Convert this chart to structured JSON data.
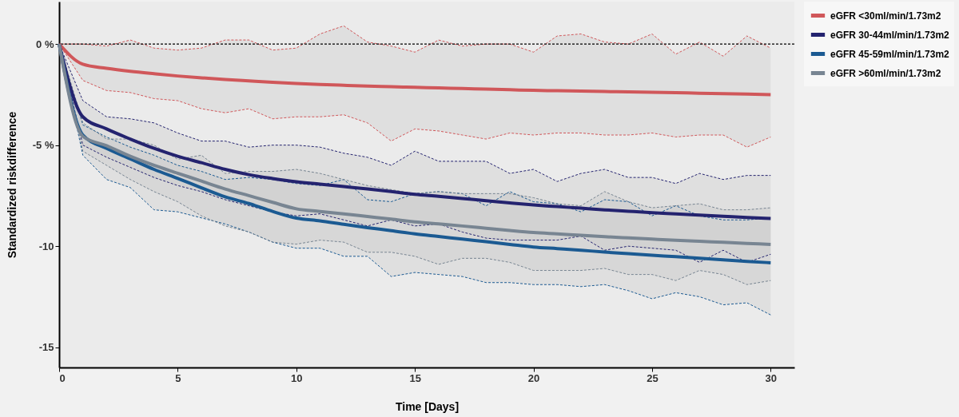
{
  "chart_data": {
    "type": "line",
    "xlabel": "Time [Days]",
    "ylabel": "Standardized riskdifference",
    "x": [
      0,
      1,
      2,
      3,
      4,
      5,
      6,
      7,
      8,
      9,
      10,
      11,
      12,
      13,
      14,
      15,
      16,
      17,
      18,
      19,
      20,
      21,
      22,
      23,
      24,
      25,
      26,
      27,
      28,
      29,
      30
    ],
    "xlim": [
      0,
      31
    ],
    "xticks": [
      0,
      5,
      10,
      15,
      20,
      25,
      30
    ],
    "ylim": [
      -16,
      2.1
    ],
    "yticks": [
      {
        "value": 0,
        "label": "0 %"
      },
      {
        "value": -5,
        "label": "-5 %"
      },
      -10,
      -15
    ],
    "legend": "right",
    "line_style": "solid",
    "ref_lines": [
      {
        "axis": "y",
        "value": 0,
        "color": "#000000",
        "line_style": "dashed"
      }
    ],
    "series": [
      {
        "name": "eGFR <30ml/min/1.73m2",
        "color": "#d0575a",
        "values": [
          0,
          -1.0,
          -1.2,
          -1.35,
          -1.47,
          -1.58,
          -1.67,
          -1.75,
          -1.82,
          -1.89,
          -1.95,
          -2.0,
          -2.04,
          -2.08,
          -2.11,
          -2.14,
          -2.17,
          -2.2,
          -2.23,
          -2.26,
          -2.29,
          -2.31,
          -2.33,
          -2.35,
          -2.37,
          -2.39,
          -2.41,
          -2.43,
          -2.45,
          -2.47,
          -2.5
        ],
        "lower": [
          0,
          -1.8,
          -2.3,
          -2.4,
          -2.7,
          -2.8,
          -3.2,
          -3.4,
          -3.2,
          -3.7,
          -3.6,
          -3.6,
          -3.5,
          -3.9,
          -4.8,
          -4.2,
          -4.3,
          -4.5,
          -4.7,
          -4.4,
          -4.5,
          -4.4,
          -4.4,
          -4.5,
          -4.5,
          -4.4,
          -4.6,
          -4.5,
          -4.5,
          -5.1,
          -4.6
        ],
        "upper": [
          0,
          0,
          -0.1,
          0.2,
          -0.2,
          -0.3,
          -0.2,
          0.2,
          0.2,
          -0.3,
          -0.2,
          0.5,
          0.9,
          0.1,
          -0.1,
          -0.4,
          0.2,
          -0.1,
          0,
          0,
          -0.4,
          0.4,
          0.5,
          0.1,
          0,
          0.5,
          -0.5,
          0.1,
          -0.6,
          0.4,
          -0.2
        ]
      },
      {
        "name": "eGFR 30-44ml/min/1.73m2",
        "color": "#24236f",
        "values": [
          0,
          -3.6,
          -4.2,
          -4.7,
          -5.16,
          -5.55,
          -5.87,
          -6.2,
          -6.46,
          -6.65,
          -6.81,
          -6.93,
          -7.05,
          -7.17,
          -7.3,
          -7.43,
          -7.53,
          -7.64,
          -7.75,
          -7.86,
          -7.96,
          -8.04,
          -8.12,
          -8.2,
          -8.27,
          -8.34,
          -8.4,
          -8.46,
          -8.52,
          -8.58,
          -8.63
        ],
        "lower": [
          0,
          -5.0,
          -5.6,
          -6.1,
          -6.6,
          -7.0,
          -7.3,
          -7.7,
          -8.0,
          -8.3,
          -8.5,
          -8.4,
          -8.7,
          -9.0,
          -8.7,
          -9.0,
          -8.9,
          -9.3,
          -9.6,
          -9.7,
          -9.7,
          -9.7,
          -9.5,
          -10.2,
          -10.0,
          -10.1,
          -10.2,
          -10.8,
          -10.2,
          -10.8,
          -10.4
        ],
        "upper": [
          0,
          -2.8,
          -3.6,
          -3.7,
          -3.9,
          -4.4,
          -4.8,
          -4.8,
          -5.1,
          -5.0,
          -5.0,
          -5.1,
          -5.4,
          -5.6,
          -6.0,
          -5.3,
          -5.8,
          -5.8,
          -5.8,
          -6.4,
          -6.2,
          -6.8,
          -6.4,
          -6.2,
          -6.6,
          -6.6,
          -6.9,
          -6.4,
          -6.7,
          -6.5,
          -6.5
        ]
      },
      {
        "name": "eGFR 45-59ml/min/1.73m2",
        "color": "#1b5a92",
        "values": [
          0,
          -4.5,
          -5.16,
          -5.68,
          -6.2,
          -6.65,
          -7.11,
          -7.56,
          -7.89,
          -8.28,
          -8.61,
          -8.75,
          -8.92,
          -9.08,
          -9.23,
          -9.39,
          -9.52,
          -9.65,
          -9.78,
          -9.91,
          -10.04,
          -10.12,
          -10.2,
          -10.29,
          -10.37,
          -10.45,
          -10.52,
          -10.6,
          -10.67,
          -10.75,
          -10.82
        ],
        "lower": [
          0,
          -5.5,
          -6.7,
          -7.1,
          -8.2,
          -8.3,
          -8.6,
          -8.9,
          -9.3,
          -9.8,
          -10.1,
          -10.1,
          -10.5,
          -10.5,
          -11.5,
          -11.3,
          -11.4,
          -11.5,
          -11.8,
          -11.8,
          -11.9,
          -11.9,
          -12.0,
          -11.9,
          -12.2,
          -12.6,
          -12.3,
          -12.5,
          -12.9,
          -12.8,
          -13.4
        ],
        "upper": [
          0,
          -4.0,
          -4.6,
          -5.1,
          -5.5,
          -6.0,
          -6.3,
          -6.7,
          -6.6,
          -6.7,
          -6.9,
          -7.0,
          -6.7,
          -7.7,
          -7.8,
          -7.4,
          -7.3,
          -7.4,
          -8.0,
          -7.3,
          -7.8,
          -7.9,
          -8.3,
          -7.7,
          -7.8,
          -8.5,
          -8.0,
          -8.5,
          -8.7,
          -8.7,
          -8.6
        ]
      },
      {
        "name": "eGFR >60ml/min/1.73m2",
        "color": "#788592",
        "values": [
          0,
          -4.57,
          -5.03,
          -5.55,
          -6.0,
          -6.39,
          -6.78,
          -7.17,
          -7.5,
          -7.83,
          -8.15,
          -8.28,
          -8.4,
          -8.53,
          -8.66,
          -8.8,
          -8.9,
          -9.0,
          -9.11,
          -9.22,
          -9.32,
          -9.39,
          -9.46,
          -9.53,
          -9.59,
          -9.65,
          -9.71,
          -9.76,
          -9.81,
          -9.86,
          -9.91
        ],
        "lower": [
          0,
          -5.3,
          -6.0,
          -6.7,
          -7.3,
          -7.8,
          -8.5,
          -9.0,
          -9.3,
          -9.8,
          -9.9,
          -9.7,
          -9.8,
          -10.3,
          -10.3,
          -10.5,
          -10.9,
          -10.6,
          -10.6,
          -10.8,
          -11.2,
          -11.2,
          -11.2,
          -11.1,
          -11.4,
          -11.4,
          -11.7,
          -11.2,
          -11.4,
          -11.9,
          -11.7
        ],
        "upper": [
          0,
          -3.9,
          -4.7,
          -4.7,
          -5.0,
          -5.7,
          -5.5,
          -6.4,
          -6.3,
          -6.3,
          -6.2,
          -6.4,
          -6.7,
          -7.0,
          -7.2,
          -7.4,
          -7.3,
          -7.4,
          -7.4,
          -7.4,
          -7.6,
          -7.9,
          -8.0,
          -7.3,
          -7.8,
          -8.1,
          -8.0,
          -7.9,
          -8.2,
          -8.2,
          -8.1
        ]
      },
      {
        "color": "#d0575a",
        "line_style": "dashed",
        "values": [
          0,
          -1.8,
          -2.3,
          -2.4,
          -2.7,
          -2.8,
          -3.2,
          -3.4,
          -3.2,
          -3.7,
          -3.6,
          -3.6,
          -3.5,
          -3.9,
          -4.8,
          -4.2,
          -4.3,
          -4.5,
          -4.7,
          -4.4,
          -4.5,
          -4.4,
          -4.4,
          -4.5,
          -4.5,
          -4.4,
          -4.6,
          -4.5,
          -4.5,
          -5.1,
          -4.6
        ]
      },
      {
        "color": "#d0575a",
        "line_style": "dashed",
        "values": [
          0,
          0,
          -0.1,
          0.2,
          -0.2,
          -0.3,
          -0.2,
          0.2,
          0.2,
          -0.3,
          -0.2,
          0.5,
          0.9,
          0.1,
          -0.1,
          -0.4,
          0.2,
          -0.1,
          0,
          0,
          -0.4,
          0.4,
          0.5,
          0.1,
          0,
          0.5,
          -0.5,
          0.1,
          -0.6,
          0.4,
          -0.2
        ]
      },
      {
        "color": "#24236f",
        "line_style": "dashed",
        "values": [
          0,
          -5.0,
          -5.6,
          -6.1,
          -6.6,
          -7.0,
          -7.3,
          -7.7,
          -8.0,
          -8.3,
          -8.5,
          -8.4,
          -8.7,
          -9.0,
          -8.7,
          -9.0,
          -8.9,
          -9.3,
          -9.6,
          -9.7,
          -9.7,
          -9.7,
          -9.5,
          -10.2,
          -10.0,
          -10.1,
          -10.2,
          -10.8,
          -10.2,
          -10.8,
          -10.4
        ]
      },
      {
        "color": "#24236f",
        "line_style": "dashed",
        "values": [
          0,
          -2.8,
          -3.6,
          -3.7,
          -3.9,
          -4.4,
          -4.8,
          -4.8,
          -5.1,
          -5.0,
          -5.0,
          -5.1,
          -5.4,
          -5.6,
          -6.0,
          -5.3,
          -5.8,
          -5.8,
          -5.8,
          -6.4,
          -6.2,
          -6.8,
          -6.4,
          -6.2,
          -6.6,
          -6.6,
          -6.9,
          -6.4,
          -6.7,
          -6.5,
          -6.5
        ]
      },
      {
        "color": "#1b5a92",
        "line_style": "dashed",
        "values": [
          0,
          -5.5,
          -6.7,
          -7.1,
          -8.2,
          -8.3,
          -8.6,
          -8.9,
          -9.3,
          -9.8,
          -10.1,
          -10.1,
          -10.5,
          -10.5,
          -11.5,
          -11.3,
          -11.4,
          -11.5,
          -11.8,
          -11.8,
          -11.9,
          -11.9,
          -12.0,
          -11.9,
          -12.2,
          -12.6,
          -12.3,
          -12.5,
          -12.9,
          -12.8,
          -13.4
        ]
      },
      {
        "color": "#1b5a92",
        "line_style": "dashed",
        "values": [
          0,
          -4.0,
          -4.6,
          -5.1,
          -5.5,
          -6.0,
          -6.3,
          -6.7,
          -6.6,
          -6.7,
          -6.9,
          -7.0,
          -6.7,
          -7.7,
          -7.8,
          -7.4,
          -7.3,
          -7.4,
          -8.0,
          -7.3,
          -7.8,
          -7.9,
          -8.3,
          -7.7,
          -7.8,
          -8.5,
          -8.0,
          -8.5,
          -8.7,
          -8.7,
          -8.6
        ]
      },
      {
        "color": "#788592",
        "line_style": "dashed",
        "values": [
          0,
          -5.3,
          -6.0,
          -6.7,
          -7.3,
          -7.8,
          -8.5,
          -9.0,
          -9.3,
          -9.8,
          -9.9,
          -9.7,
          -9.8,
          -10.3,
          -10.3,
          -10.5,
          -10.9,
          -10.6,
          -10.6,
          -10.8,
          -11.2,
          -11.2,
          -11.2,
          -11.1,
          -11.4,
          -11.4,
          -11.7,
          -11.2,
          -11.4,
          -11.9,
          -11.7
        ]
      },
      {
        "color": "#788592",
        "line_style": "dashed",
        "values": [
          0,
          -3.9,
          -4.7,
          -4.7,
          -5.0,
          -5.7,
          -5.5,
          -6.4,
          -6.3,
          -6.3,
          -6.2,
          -6.4,
          -6.7,
          -7.0,
          -7.2,
          -7.4,
          -7.3,
          -7.4,
          -7.4,
          -7.4,
          -7.6,
          -7.9,
          -8.0,
          -7.3,
          -7.8,
          -8.1,
          -8.0,
          -7.9,
          -8.2,
          -8.2,
          -8.1
        ]
      }
    ]
  }
}
